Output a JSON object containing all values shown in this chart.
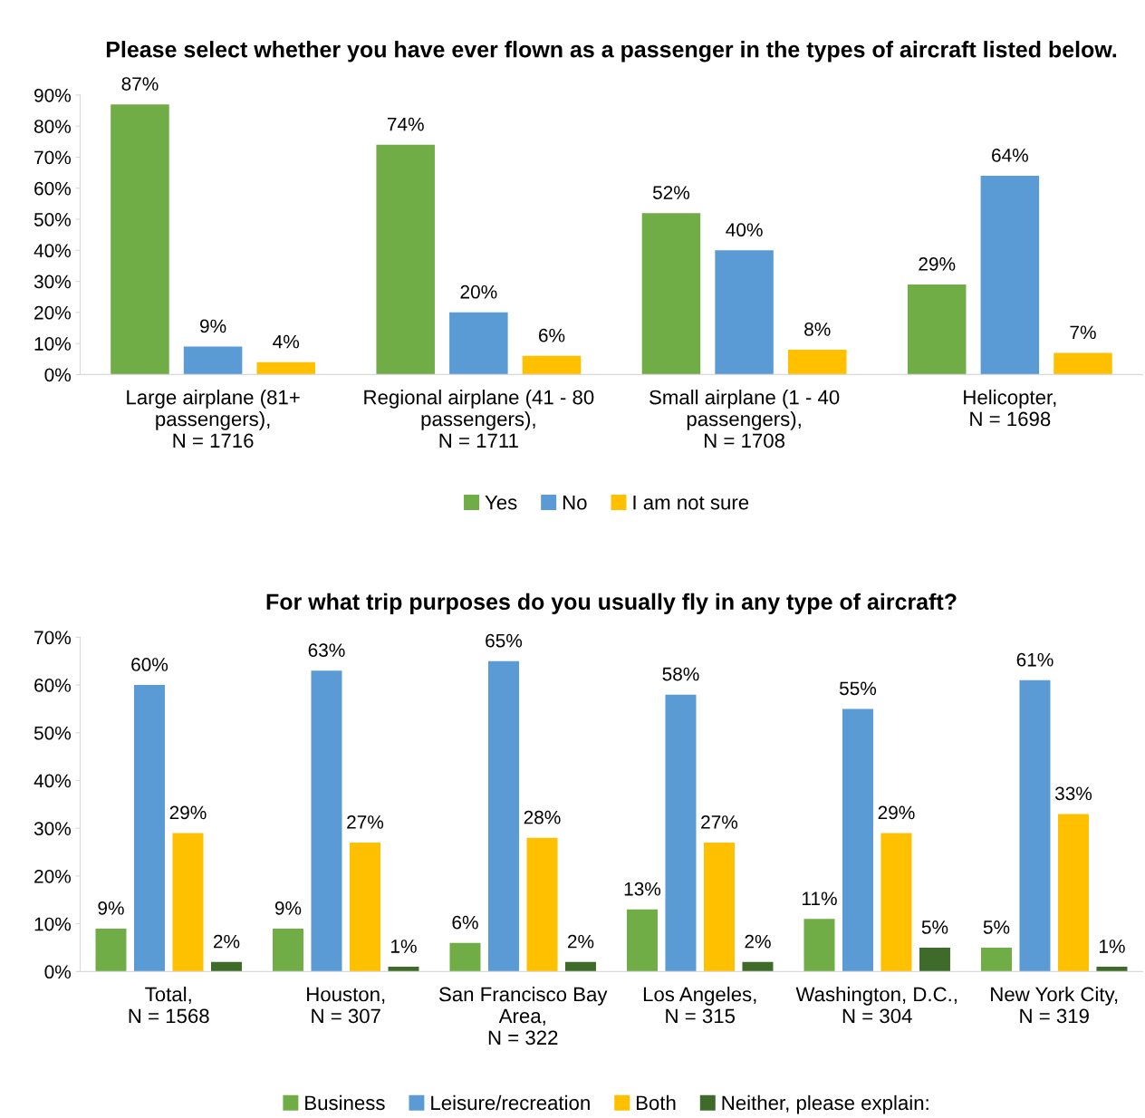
{
  "chart_data": [
    {
      "type": "bar",
      "title": "Please select whether you have ever flown as a passenger in the types of aircraft listed below.",
      "categories": [
        "Large airplane (81+\npassengers),\nN = 1716",
        "Regional airplane (41 - 80\npassengers),\nN = 1711",
        "Small airplane (1 - 40\npassengers),\nN = 1708",
        "Helicopter,\nN = 1698"
      ],
      "series": [
        {
          "name": "Yes",
          "color": "#70ad47",
          "values": [
            87,
            74,
            52,
            29
          ],
          "value_labels": [
            "87%",
            "74%",
            "52%",
            "29%"
          ]
        },
        {
          "name": "No",
          "color": "#5b9bd5",
          "values": [
            9,
            20,
            40,
            64
          ],
          "value_labels": [
            "9%",
            "20%",
            "40%",
            "64%"
          ]
        },
        {
          "name": "I am not sure",
          "color": "#ffc000",
          "values": [
            4,
            6,
            8,
            7
          ],
          "value_labels": [
            "4%",
            "6%",
            "8%",
            "7%"
          ]
        }
      ],
      "ylim": [
        0,
        90
      ],
      "yticks": [
        {
          "value": 0,
          "label": "0%"
        },
        {
          "value": 10,
          "label": "10%"
        },
        {
          "value": 20,
          "label": "20%"
        },
        {
          "value": 30,
          "label": "30%"
        },
        {
          "value": 40,
          "label": "40%"
        },
        {
          "value": 50,
          "label": "50%"
        },
        {
          "value": 60,
          "label": "60%"
        },
        {
          "value": 70,
          "label": "70%"
        },
        {
          "value": 80,
          "label": "80%"
        },
        {
          "value": 90,
          "label": "90%"
        }
      ],
      "grid": false,
      "legend": "bottom"
    },
    {
      "type": "bar",
      "title": "For what trip purposes do you usually fly in any type of aircraft?",
      "categories": [
        "Total,\nN = 1568",
        "Houston,\nN = 307",
        "San Francisco Bay\nArea,\nN = 322",
        "Los Angeles,\nN = 315",
        "Washington, D.C.,\nN = 304",
        "New York City,\nN = 319"
      ],
      "series": [
        {
          "name": "Business",
          "color": "#70ad47",
          "values": [
            9,
            9,
            6,
            13,
            11,
            5
          ],
          "value_labels": [
            "9%",
            "9%",
            "6%",
            "13%",
            "11%",
            "5%"
          ]
        },
        {
          "name": "Leisure/recreation",
          "color": "#5b9bd5",
          "values": [
            60,
            63,
            65,
            58,
            55,
            61
          ],
          "value_labels": [
            "60%",
            "63%",
            "65%",
            "58%",
            "55%",
            "61%"
          ]
        },
        {
          "name": "Both",
          "color": "#ffc000",
          "values": [
            29,
            27,
            28,
            27,
            29,
            33
          ],
          "value_labels": [
            "29%",
            "27%",
            "28%",
            "27%",
            "29%",
            "33%"
          ]
        },
        {
          "name": "Neither, please explain:",
          "color": "#3f6b2a",
          "values": [
            2,
            1,
            2,
            2,
            5,
            1
          ],
          "value_labels": [
            "2%",
            "1%",
            "2%",
            "2%",
            "5%",
            "1%"
          ]
        }
      ],
      "ylim": [
        0,
        70
      ],
      "yticks": [
        {
          "value": 0,
          "label": "0%"
        },
        {
          "value": 10,
          "label": "10%"
        },
        {
          "value": 20,
          "label": "20%"
        },
        {
          "value": 30,
          "label": "30%"
        },
        {
          "value": 40,
          "label": "40%"
        },
        {
          "value": 50,
          "label": "50%"
        },
        {
          "value": 60,
          "label": "60%"
        },
        {
          "value": 70,
          "label": "70%"
        }
      ],
      "grid": false,
      "legend": "bottom"
    }
  ]
}
